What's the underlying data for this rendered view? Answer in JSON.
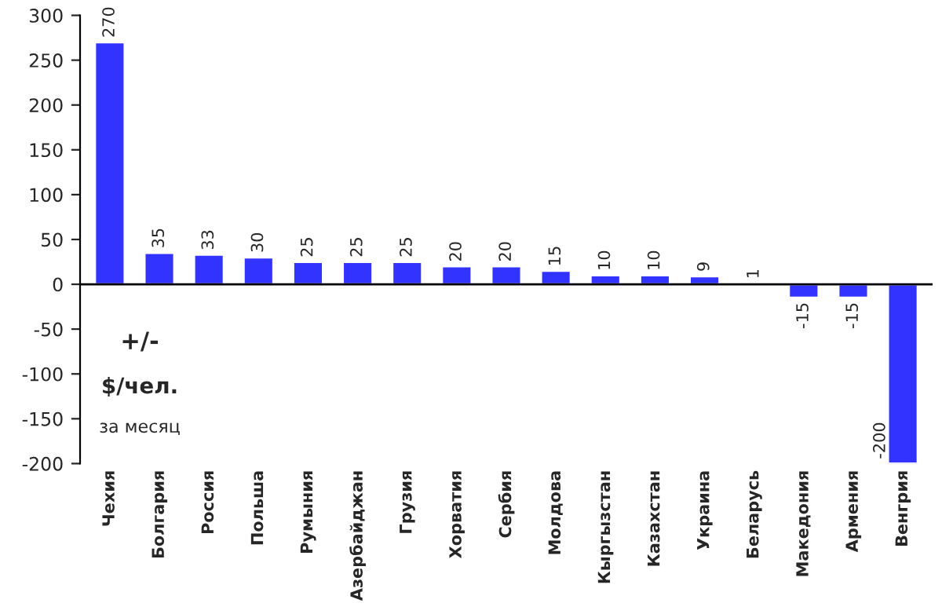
{
  "chart_data": {
    "type": "bar",
    "categories": [
      "Чехия",
      "Болгария",
      "Россия",
      "Польша",
      "Румыния",
      "Азербайджан",
      "Грузия",
      "Хорватия",
      "Сербия",
      "Молдова",
      "Кыргызстан",
      "Казахстан",
      "Украина",
      "Беларусь",
      "Македония",
      "Армения",
      "Венгрия"
    ],
    "values": [
      270,
      35,
      33,
      30,
      25,
      25,
      25,
      20,
      20,
      15,
      10,
      10,
      9,
      1,
      -15,
      -15,
      -200
    ],
    "color": "#3333ff",
    "ylim": [
      -200,
      300
    ],
    "yticks": [
      -200,
      -150,
      -100,
      -50,
      0,
      50,
      100,
      150,
      200,
      250,
      300
    ],
    "data_labels": true,
    "legend": false,
    "annotations": [
      "+/-",
      "$/чел.",
      "за месяц"
    ]
  }
}
